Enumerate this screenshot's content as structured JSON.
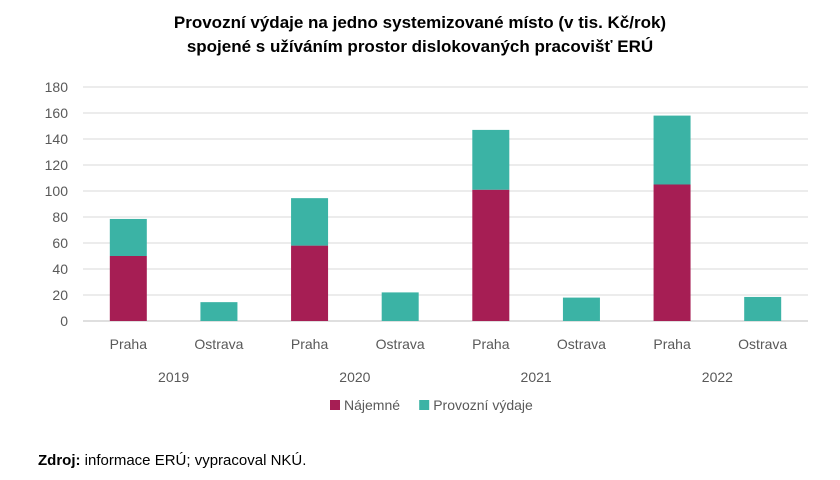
{
  "chart_data": {
    "type": "bar",
    "stacked": true,
    "title": [
      "Provozní výdaje na jedno systemizované místo (v tis. Kč/rok)",
      "spojené s užíváním prostor dislokovaných pracovišť ERÚ"
    ],
    "groups": [
      "2019",
      "2020",
      "2021",
      "2022"
    ],
    "categories": [
      "Praha",
      "Ostrava"
    ],
    "series": [
      {
        "name": "Nájemné",
        "color": "#A61E54",
        "values": [
          [
            50,
            0
          ],
          [
            58,
            0
          ],
          [
            101,
            0
          ],
          [
            105,
            0
          ]
        ]
      },
      {
        "name": "Provozní výdaje",
        "color": "#3BB3A5",
        "values": [
          [
            28.5,
            14.5
          ],
          [
            36.5,
            22
          ],
          [
            46,
            18
          ],
          [
            53,
            18.5
          ]
        ]
      }
    ],
    "ylim": [
      0,
      180
    ],
    "yticks": [
      0,
      20,
      40,
      60,
      80,
      100,
      120,
      140,
      160,
      180
    ],
    "grid": true,
    "legend": "bottom"
  },
  "source": {
    "label": "Zdroj:",
    "text": " informace ERÚ; vypracoval NKÚ."
  }
}
